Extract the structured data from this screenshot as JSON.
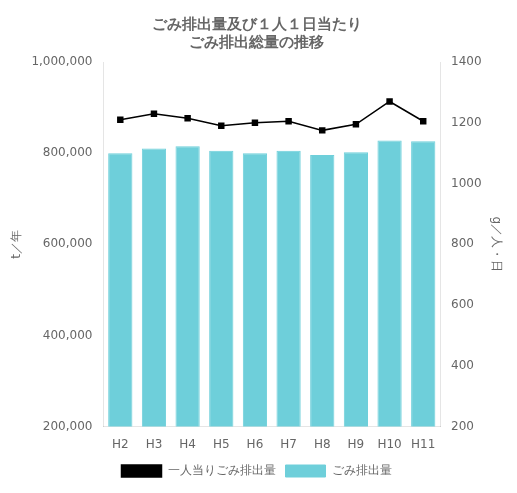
{
  "chart_data": {
    "type": "bar",
    "title": "ごみ排出量及び１人１日当たり\nごみ排出総量の推移",
    "categories": [
      "H2",
      "H3",
      "H4",
      "H5",
      "H6",
      "H7",
      "H8",
      "H9",
      "H10",
      "H11"
    ],
    "series": [
      {
        "name": "ごみ排出量",
        "type": "bar",
        "color": "#6ECFDA",
        "values": [
          800000,
          810000,
          815000,
          805000,
          800000,
          805000,
          796000,
          802000,
          828000,
          826000
        ]
      },
      {
        "name": "一人当りごみ排出量",
        "type": "line",
        "color": "#000000",
        "axis": "y2",
        "marker": "square",
        "values": [
          1210,
          1230,
          1215,
          1190,
          1200,
          1205,
          1175,
          1195,
          1270,
          1205
        ]
      }
    ],
    "ylabel": "t／年",
    "y2label": "g／人・日",
    "ylim": [
      200000,
      1000000
    ],
    "yticks": [
      {
        "value": 200000,
        "label": "200,000"
      },
      {
        "value": 400000,
        "label": "400,000"
      },
      {
        "value": 600000,
        "label": "600,000"
      },
      {
        "value": 800000,
        "label": "800,000"
      },
      {
        "value": 1000000,
        "label": "1,000,000"
      }
    ],
    "y2lim": [
      200,
      1400
    ],
    "y2ticks": [
      200,
      400,
      600,
      800,
      1000,
      1200,
      1400
    ],
    "grid": false,
    "legend": "bottom"
  }
}
